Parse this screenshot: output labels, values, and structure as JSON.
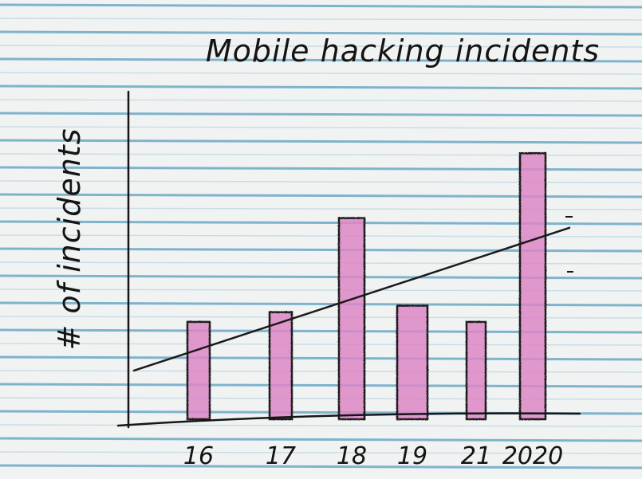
{
  "chart_data": {
    "type": "bar",
    "title": "Mobile hacking incidents",
    "xlabel": "",
    "ylabel": "# of incidents",
    "categories": [
      "16",
      "17",
      "18",
      "19",
      "21",
      "2020"
    ],
    "values": [
      30,
      33,
      62,
      35,
      30,
      82
    ],
    "trendline": {
      "start": 15,
      "end": 59
    },
    "ylim": [
      0,
      85
    ],
    "grid": false,
    "legend": "none",
    "colors": {
      "bar_fill": "#dd86c6",
      "bar_stroke": "#1b1b1b",
      "line": "#1b1b1b",
      "paper": "#f1f3f3",
      "rule_blue": "#7fb3cc",
      "rule_light": "#c9dde6"
    }
  }
}
